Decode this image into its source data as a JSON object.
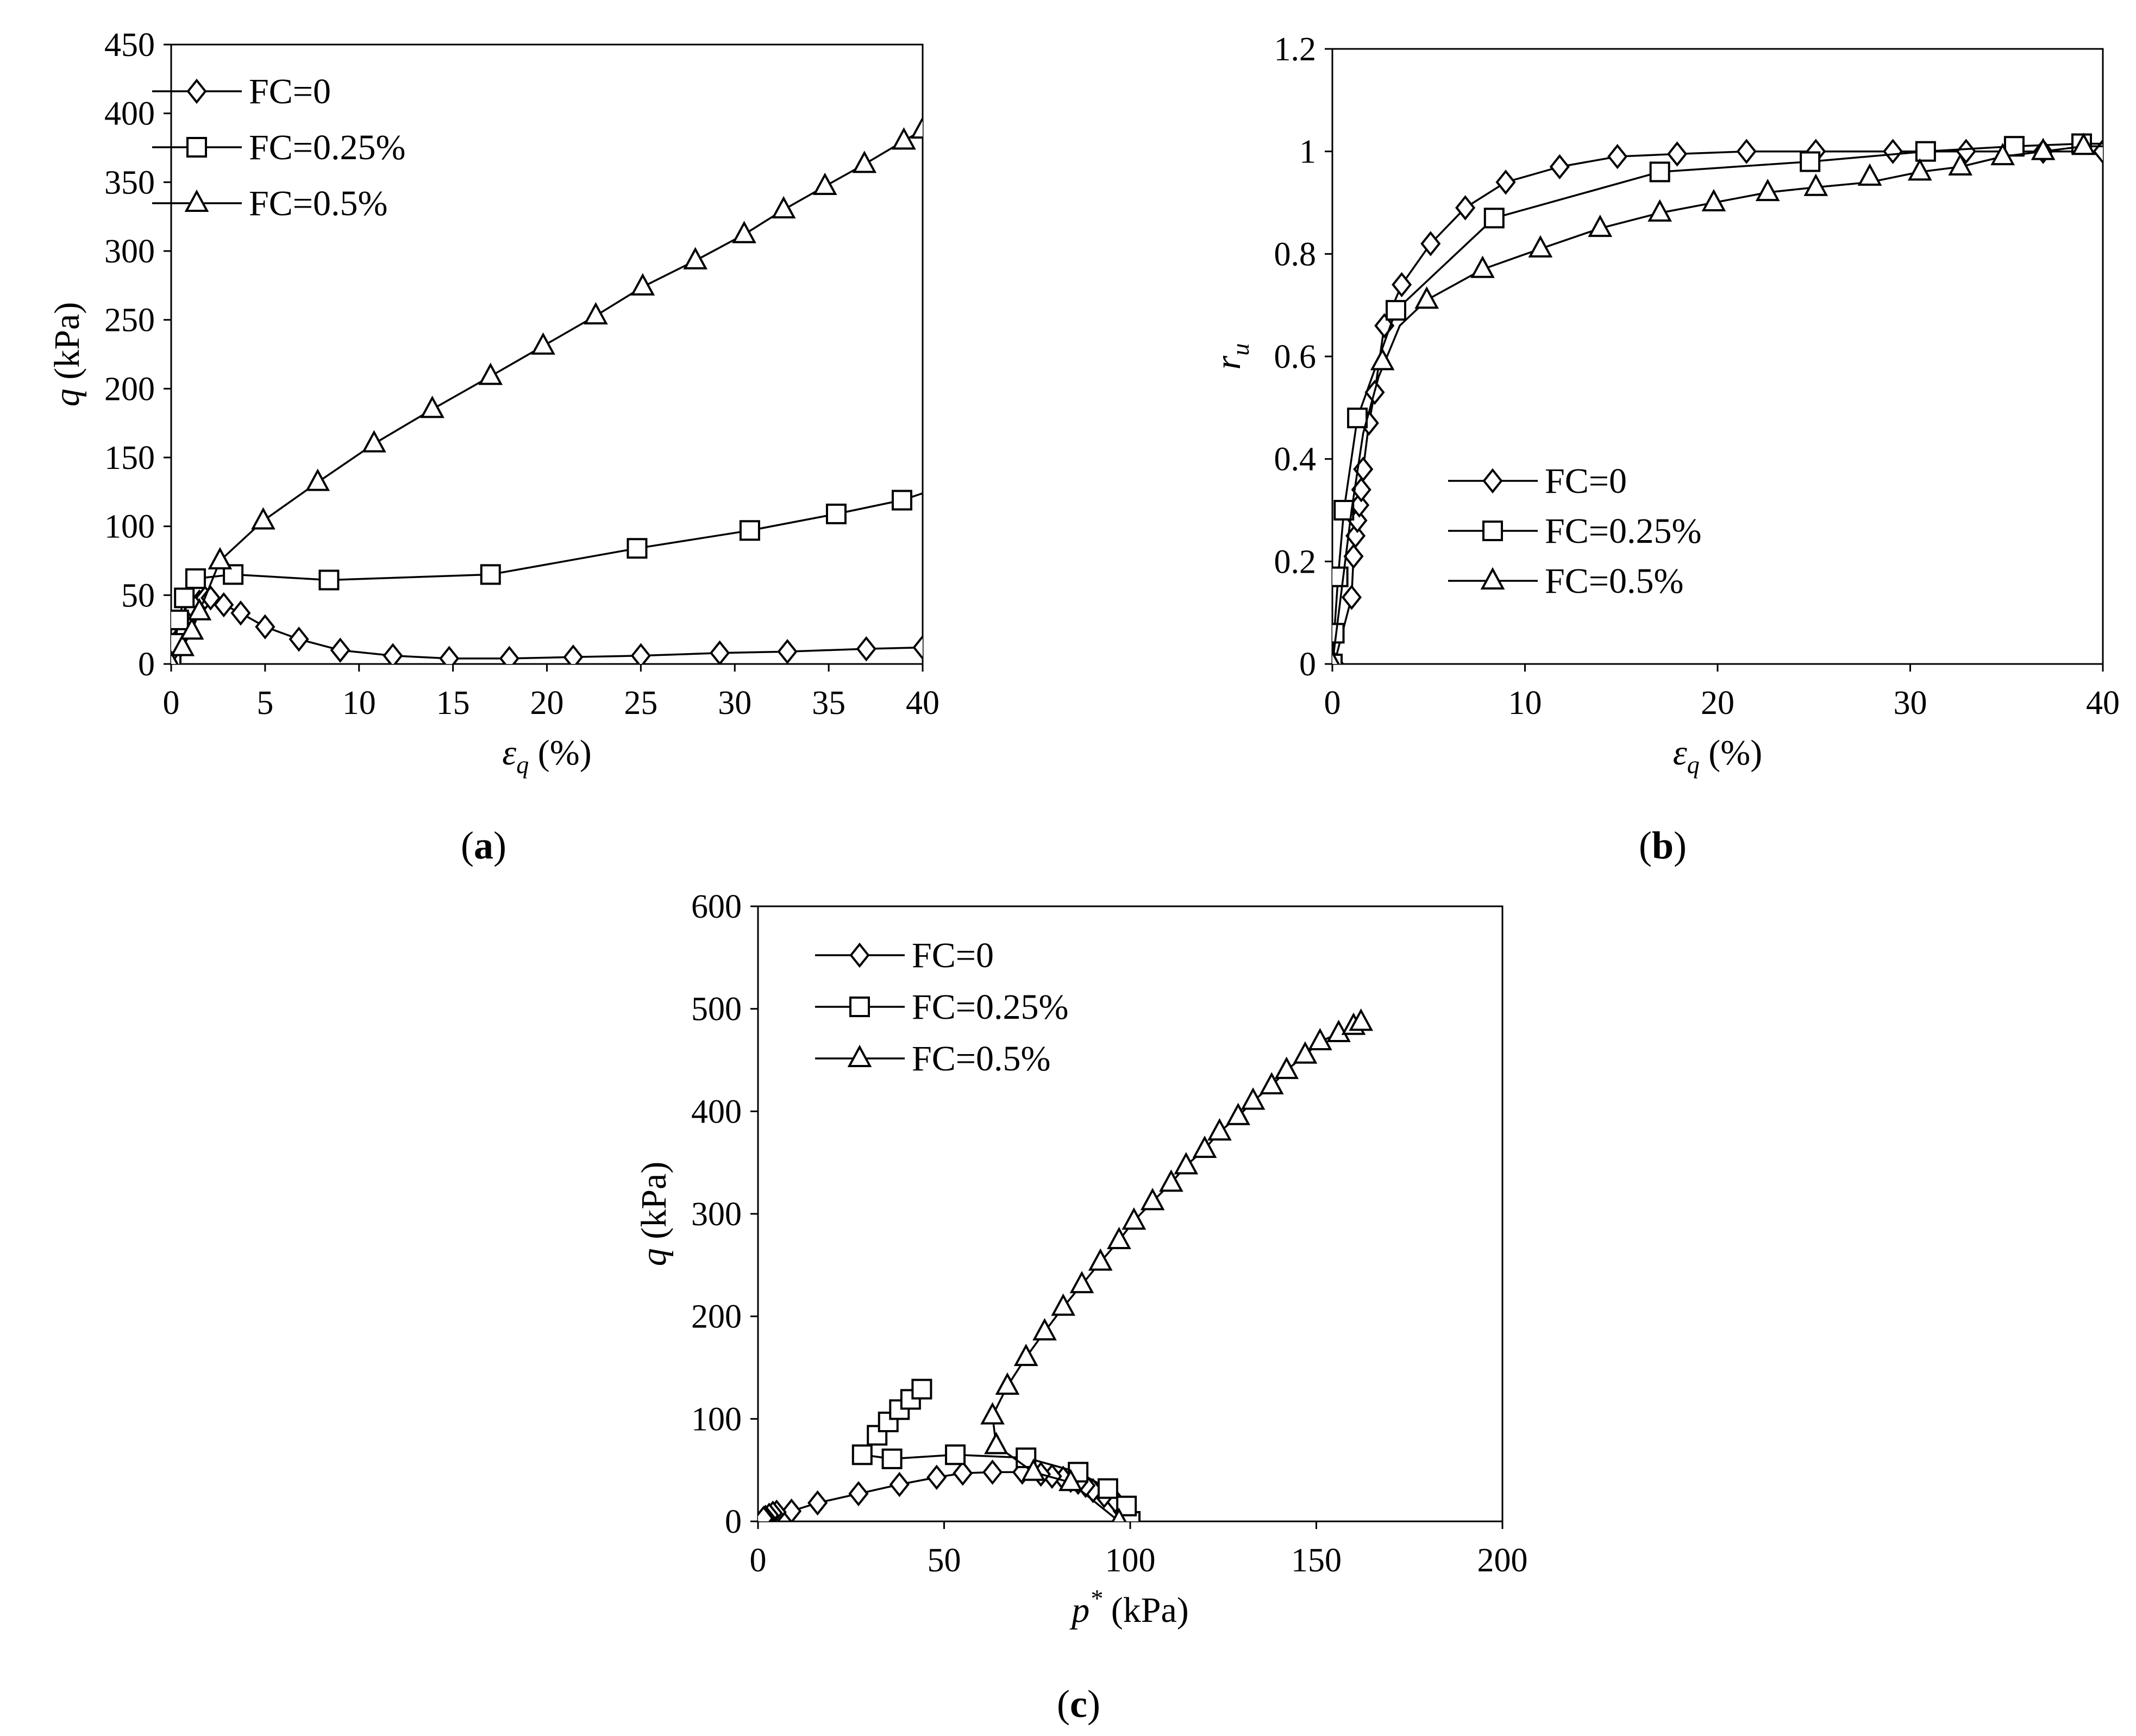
{
  "chart_data": [
    {
      "type": "line",
      "panel_label": "a",
      "xlabel_parts": [
        "ε",
        "q",
        " (%)"
      ],
      "ylabel_parts": [
        "q",
        "",
        " (kPa)"
      ],
      "xlim": [
        0,
        40
      ],
      "ylim": [
        0,
        450
      ],
      "xticks": [
        0,
        5,
        10,
        15,
        20,
        25,
        30,
        35,
        40
      ],
      "yticks": [
        0,
        50,
        100,
        150,
        200,
        250,
        300,
        350,
        400,
        450
      ],
      "grid": false,
      "legend_position": "top-left",
      "series": [
        {
          "name": "FC=0",
          "marker": "diamond",
          "x": [
            0,
            0.3,
            0.6,
            0.9,
            1.2,
            1.5,
            1.8,
            2.1,
            2.8,
            3.7,
            5.0,
            6.8,
            9.0,
            11.8,
            14.8,
            18.0,
            21.4,
            25.0,
            29.2,
            32.8,
            37.0,
            40.0
          ],
          "y": [
            0,
            10,
            22,
            33,
            40,
            45,
            48,
            48,
            43,
            37,
            27,
            18,
            10,
            6,
            4,
            4,
            5,
            6,
            8,
            9,
            11,
            12
          ]
        },
        {
          "name": "FC=0.25%",
          "marker": "square",
          "x": [
            0,
            0.2,
            0.4,
            0.7,
            1.3,
            3.3,
            8.4,
            17.0,
            24.8,
            30.8,
            35.4,
            38.9,
            40.0
          ],
          "y": [
            0,
            15,
            32,
            48,
            62,
            65,
            61,
            65,
            84,
            97,
            109,
            119,
            124
          ],
          "marker_x": [
            0,
            0.2,
            0.4,
            0.7,
            1.3,
            3.3,
            8.4,
            17.0,
            24.8,
            30.8,
            35.4,
            38.9
          ]
        },
        {
          "name": "FC=0.5%",
          "marker": "triangle",
          "x": [
            0,
            0.6,
            1.1,
            1.5,
            2.6,
            4.9,
            7.8,
            10.8,
            13.9,
            17.0,
            19.8,
            22.6,
            25.1,
            27.9,
            30.5,
            32.6,
            34.8,
            36.9,
            39.0,
            40.0
          ],
          "y": [
            0,
            12,
            24,
            38,
            75,
            104,
            132,
            160,
            185,
            209,
            231,
            253,
            274,
            293,
            312,
            330,
            347,
            363,
            380,
            388
          ]
        }
      ]
    },
    {
      "type": "line",
      "panel_label": "b",
      "xlabel_parts": [
        "ε",
        "q",
        " (%)"
      ],
      "ylabel_parts": [
        "r",
        "u",
        ""
      ],
      "xlim": [
        0,
        40
      ],
      "ylim": [
        0,
        1.2
      ],
      "xticks": [
        0,
        10,
        20,
        30,
        40
      ],
      "yticks": [
        0,
        0.2,
        0.4,
        0.6,
        0.8,
        1,
        1.2
      ],
      "ytick_labels": [
        "0",
        "0.2",
        "0.4",
        "0.6",
        "0.8",
        "1",
        "1.2"
      ],
      "grid": false,
      "legend_position": "center",
      "series": [
        {
          "name": "FC=0",
          "marker": "diamond",
          "x": [
            0,
            0.1,
            1.0,
            1.1,
            1.2,
            1.3,
            1.4,
            1.5,
            1.6,
            1.9,
            2.2,
            2.7,
            3.6,
            5.1,
            6.9,
            9.0,
            11.8,
            14.8,
            17.9,
            21.5,
            25.1,
            29.1,
            32.9,
            36.9,
            40.0
          ],
          "y": [
            0,
            0,
            0.13,
            0.21,
            0.25,
            0.28,
            0.31,
            0.34,
            0.38,
            0.47,
            0.53,
            0.66,
            0.74,
            0.82,
            0.89,
            0.94,
            0.97,
            0.99,
            0.995,
            1.0,
            1.0,
            1.0,
            1.0,
            1.0,
            1.0
          ]
        },
        {
          "name": "FC=0.25%",
          "marker": "square",
          "x": [
            0,
            0.1,
            0.3,
            0.6,
            1.3,
            3.3,
            8.4,
            17.0,
            24.8,
            30.8,
            35.4,
            38.9,
            40.0
          ],
          "y": [
            0,
            0.06,
            0.17,
            0.3,
            0.48,
            0.69,
            0.87,
            0.96,
            0.98,
            1.0,
            1.01,
            1.015,
            1.015
          ],
          "marker_x": [
            0,
            0.1,
            0.3,
            0.6,
            1.3,
            3.3,
            8.4,
            17.0,
            24.8,
            30.8,
            35.4,
            38.9
          ]
        },
        {
          "name": "FC=0.5%",
          "marker": "triangle",
          "x": [
            0,
            0.7,
            1.2,
            1.5,
            2.6,
            4.9,
            7.8,
            10.8,
            13.9,
            17.0,
            19.8,
            22.6,
            25.1,
            27.9,
            30.5,
            32.6,
            34.8,
            36.9,
            39.0,
            40.0
          ],
          "y": [
            0,
            0.3,
            0.48,
            0.38,
            0.59,
            0.71,
            0.77,
            0.81,
            0.85,
            0.88,
            0.9,
            0.92,
            0.93,
            0.94,
            0.96,
            0.97,
            0.99,
            1.0,
            1.01,
            1.01
          ],
          "line_x": [
            0,
            1.0,
            1.6,
            2.4,
            3.5,
            4.9,
            7.8,
            10.8,
            13.9,
            17.0,
            19.8,
            22.6,
            25.1,
            27.9,
            30.5,
            32.6,
            34.8,
            36.9,
            39.0,
            40.0
          ],
          "line_y": [
            0,
            0.3,
            0.45,
            0.56,
            0.66,
            0.71,
            0.77,
            0.81,
            0.85,
            0.88,
            0.9,
            0.92,
            0.93,
            0.94,
            0.96,
            0.97,
            0.99,
            1.0,
            1.01,
            1.01
          ],
          "marker_pts_x": [
            0,
            2.6,
            4.9,
            7.8,
            10.8,
            13.9,
            17.0,
            19.8,
            22.6,
            25.1,
            27.9,
            30.5,
            32.6,
            34.8,
            36.9,
            39.0
          ],
          "marker_pts_y": [
            0,
            0.59,
            0.71,
            0.77,
            0.81,
            0.85,
            0.88,
            0.9,
            0.92,
            0.93,
            0.95,
            0.96,
            0.97,
            0.99,
            1.0,
            1.01
          ]
        }
      ]
    },
    {
      "type": "line",
      "panel_label": "c",
      "xlabel_parts": [
        "p",
        "*",
        " (kPa)"
      ],
      "ylabel_parts": [
        "q",
        "",
        " (kPa)"
      ],
      "xlim": [
        0,
        200
      ],
      "ylim": [
        0,
        600
      ],
      "xticks": [
        0,
        50,
        100,
        150,
        200
      ],
      "yticks": [
        0,
        100,
        200,
        300,
        400,
        500,
        600
      ],
      "grid": false,
      "legend_position": "top-left",
      "series": [
        {
          "name": "FC=0",
          "marker": "diamond",
          "x": [
            100,
            98,
            96,
            93,
            90,
            88,
            86,
            84,
            82,
            79,
            76,
            71,
            63,
            55,
            48,
            38,
            27,
            16,
            9,
            5,
            4,
            3,
            2,
            1.5
          ],
          "y": [
            0,
            10,
            20,
            25,
            30,
            35,
            38,
            40,
            42,
            44,
            46,
            48,
            48,
            47,
            43,
            36,
            27,
            18,
            10,
            9,
            8,
            6,
            4,
            3
          ]
        },
        {
          "name": "FC=0.25%",
          "marker": "square",
          "x": [
            100,
            99,
            94,
            86,
            72,
            53,
            36,
            28,
            32,
            35,
            38,
            41,
            44
          ],
          "y": [
            0,
            15,
            32,
            48,
            62,
            65,
            61,
            65,
            84,
            97,
            109,
            119,
            129
          ]
        },
        {
          "name": "FC=0.5%",
          "marker": "triangle",
          "x": [
            97,
            84,
            74,
            64,
            63,
            67,
            72,
            77,
            82,
            87,
            92,
            97,
            101,
            106,
            111,
            115,
            120,
            124,
            129,
            133,
            138,
            142,
            147,
            151,
            156,
            160,
            162
          ],
          "y": [
            0,
            38,
            48,
            74,
            103,
            132,
            160,
            185,
            209,
            231,
            253,
            274,
            293,
            312,
            330,
            347,
            363,
            380,
            395,
            410,
            425,
            440,
            455,
            468,
            476,
            483,
            487
          ]
        }
      ]
    }
  ]
}
